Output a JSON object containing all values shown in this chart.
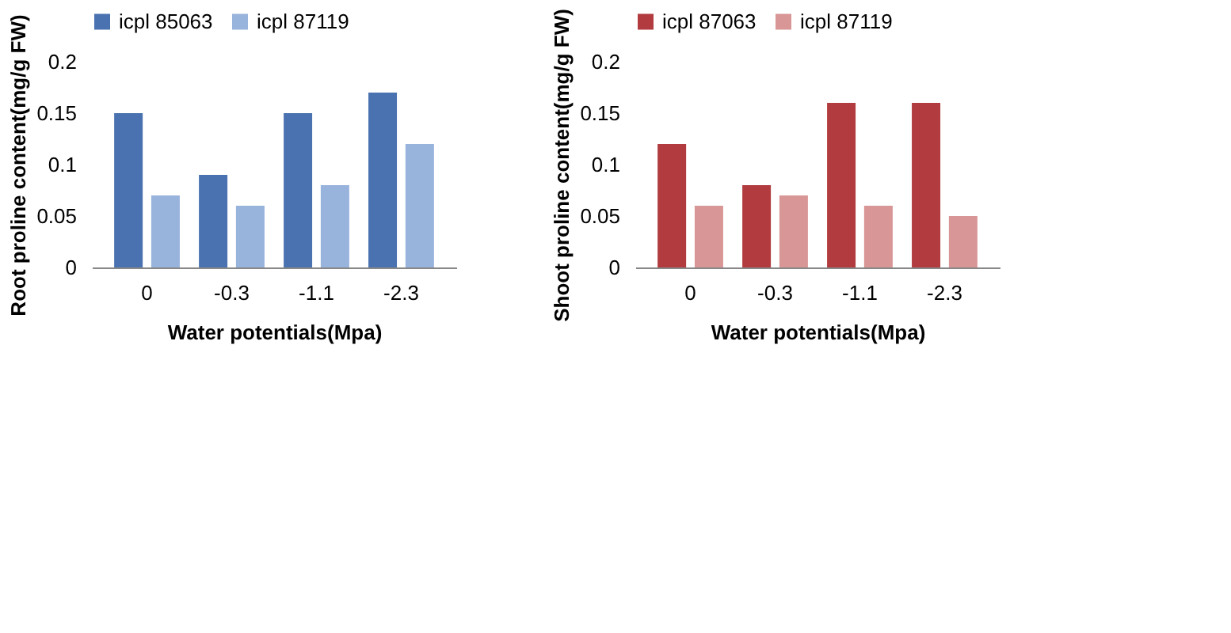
{
  "chart_data": [
    {
      "type": "bar",
      "xlabel": "Water potentials(Mpa)",
      "ylabel": "Root proline content(mg/g FW)",
      "categories": [
        "0",
        "-0.3",
        "-1.1",
        "-2.3"
      ],
      "series": [
        {
          "name": "icpl 85063",
          "color": "#4a72b0",
          "values": [
            0.15,
            0.09,
            0.15,
            0.17
          ]
        },
        {
          "name": "icpl 87119",
          "color": "#98b3dc",
          "values": [
            0.07,
            0.06,
            0.08,
            0.12
          ]
        }
      ],
      "ylim": [
        0,
        0.2
      ],
      "yticks": [
        0,
        0.05,
        0.1,
        0.15,
        0.2
      ],
      "grid": false,
      "legend": "top"
    },
    {
      "type": "bar",
      "xlabel": "Water potentials(Mpa)",
      "ylabel": "Shoot proline content(mg/g FW)",
      "categories": [
        "0",
        "-0.3",
        "-1.1",
        "-2.3"
      ],
      "series": [
        {
          "name": "icpl 87063",
          "color": "#b13b3e",
          "values": [
            0.12,
            0.08,
            0.16,
            0.16
          ]
        },
        {
          "name": "icpl 87119",
          "color": "#d99696",
          "values": [
            0.06,
            0.07,
            0.06,
            0.05
          ]
        }
      ],
      "ylim": [
        0,
        0.2
      ],
      "yticks": [
        0,
        0.05,
        0.1,
        0.15,
        0.2
      ],
      "grid": false,
      "legend": "top"
    }
  ]
}
